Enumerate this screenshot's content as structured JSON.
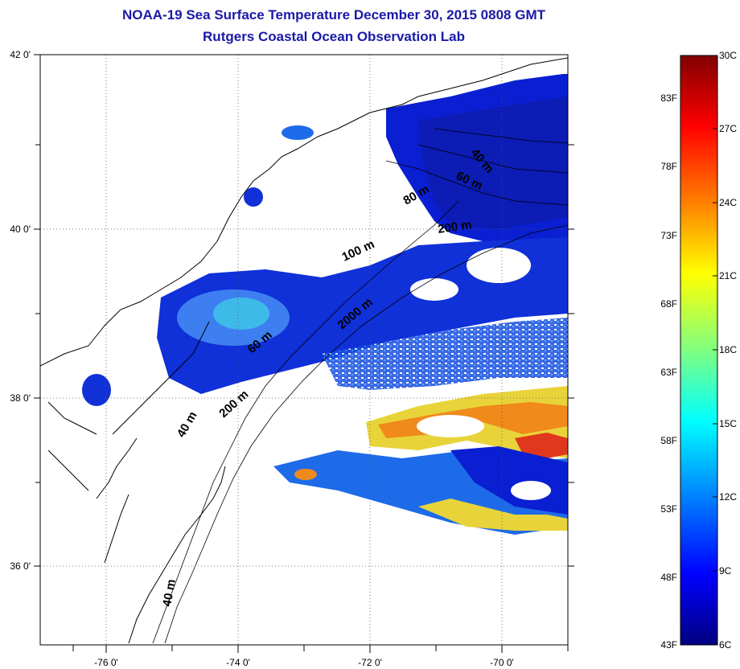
{
  "title": {
    "line1": "NOAA-19 Sea Surface Temperature December 30, 2015 0808 GMT",
    "line2": "Rutgers Coastal Ocean Observation Lab"
  },
  "axes": {
    "lon_labels": [
      "-76 0'",
      "-74 0'",
      "-72 0'",
      "-70 0'"
    ],
    "lat_labels": [
      "42 0'",
      "40 0'",
      "38 0'",
      "36 0'"
    ],
    "lon_range": [
      -77,
      -69
    ],
    "lat_range": [
      35,
      42
    ],
    "grid": "dotted"
  },
  "depth_contour_labels": [
    "40 m",
    "60 m",
    "80 m",
    "200 m",
    "100 m",
    "2000 m",
    "60 m",
    "200 m",
    "40 m",
    "40 m"
  ],
  "colorbar": {
    "fahrenheit_labels": [
      "83F",
      "78F",
      "73F",
      "68F",
      "63F",
      "58F",
      "53F",
      "48F",
      "43F"
    ],
    "celsius_labels": [
      "30C",
      "27C",
      "24C",
      "21C",
      "18C",
      "15C",
      "12C",
      "9C",
      "6C"
    ],
    "colors": [
      "#800000",
      "#ff0000",
      "#ff8000",
      "#ffff00",
      "#80ff80",
      "#00ffff",
      "#0080ff",
      "#0000ff",
      "#000080"
    ]
  },
  "colors": {
    "title": "#1a1aa8",
    "deep_blue": "#0a1fd2",
    "mid_blue": "#1e6bea",
    "cyan": "#3ec9e6",
    "warm_yellow": "#d8e040",
    "warm_orange": "#f08a1a",
    "warm_red": "#e0381c"
  }
}
